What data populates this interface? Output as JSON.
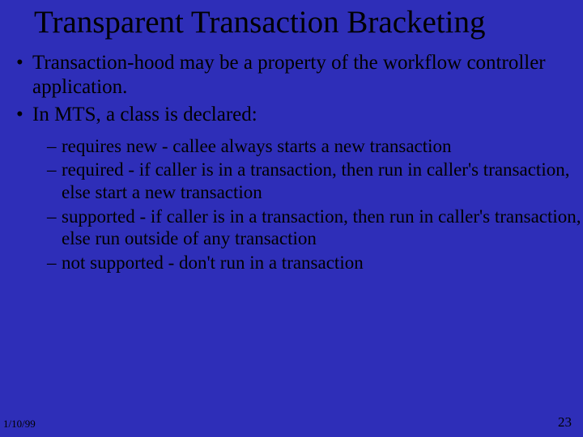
{
  "slide": {
    "background_color": "#2e2eb8",
    "text_color": "#000000",
    "font_family": "Times New Roman",
    "title": {
      "text": "Transparent Transaction Bracketing",
      "fontsize": 39
    },
    "bullets_l1": [
      {
        "text": "Transaction-hood may be a property of the workflow controller application."
      },
      {
        "text": "In MTS, a class is declared:"
      }
    ],
    "bullets_l2": [
      {
        "text": "requires new - callee always starts a new transaction"
      },
      {
        "text": "required - if caller is in a transaction, then run in caller's transaction, else start a new transaction"
      },
      {
        "text": "supported - if caller is in a transaction, then run in caller's transaction, else run outside of any transaction"
      },
      {
        "text": "not supported - don't run in a transaction"
      }
    ],
    "footer": {
      "date": "1/10/99",
      "page": "23"
    },
    "bullet_l1_marker": "•",
    "bullet_l2_marker": "–",
    "bullet_l1_fontsize": 25,
    "bullet_l2_fontsize": 23
  }
}
